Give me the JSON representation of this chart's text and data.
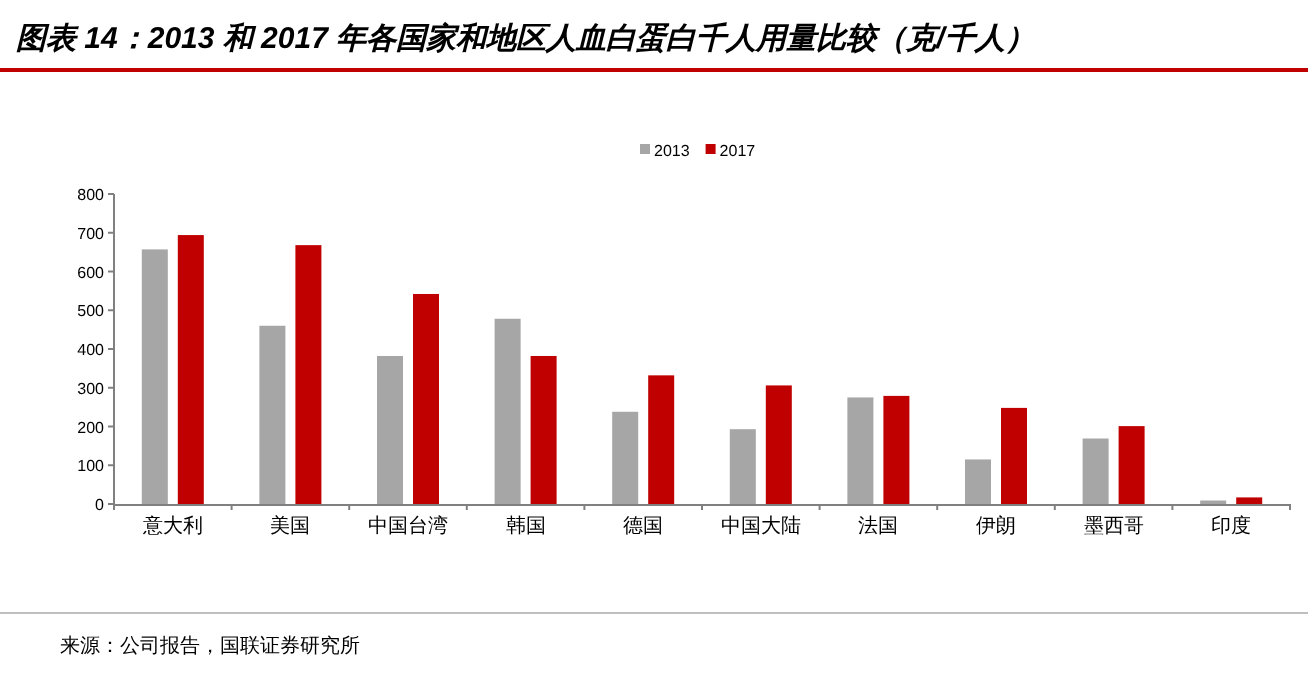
{
  "chart_data": {
    "type": "bar",
    "title": "图表 14：2013 和 2017 年各国家和地区人血白蛋白千人用量比较（克/千人）",
    "categories": [
      "意大利",
      "美国",
      "中国台湾",
      "韩国",
      "德国",
      "中国大陆",
      "法国",
      "伊朗",
      "墨西哥",
      "印度"
    ],
    "series": [
      {
        "name": "2013",
        "color": "#a6a6a6",
        "values": [
          657,
          460,
          382,
          478,
          238,
          193,
          275,
          115,
          169,
          9
        ]
      },
      {
        "name": "2017",
        "color": "#c00000",
        "values": [
          694,
          668,
          542,
          382,
          332,
          306,
          279,
          248,
          201,
          17
        ]
      }
    ],
    "ylim": [
      0,
      800
    ],
    "yticks": [
      0,
      100,
      200,
      300,
      400,
      500,
      600,
      700,
      800
    ],
    "legend": "top",
    "grid": false,
    "annotations": [
      "来源：公司报告，国联证券研究所"
    ]
  }
}
